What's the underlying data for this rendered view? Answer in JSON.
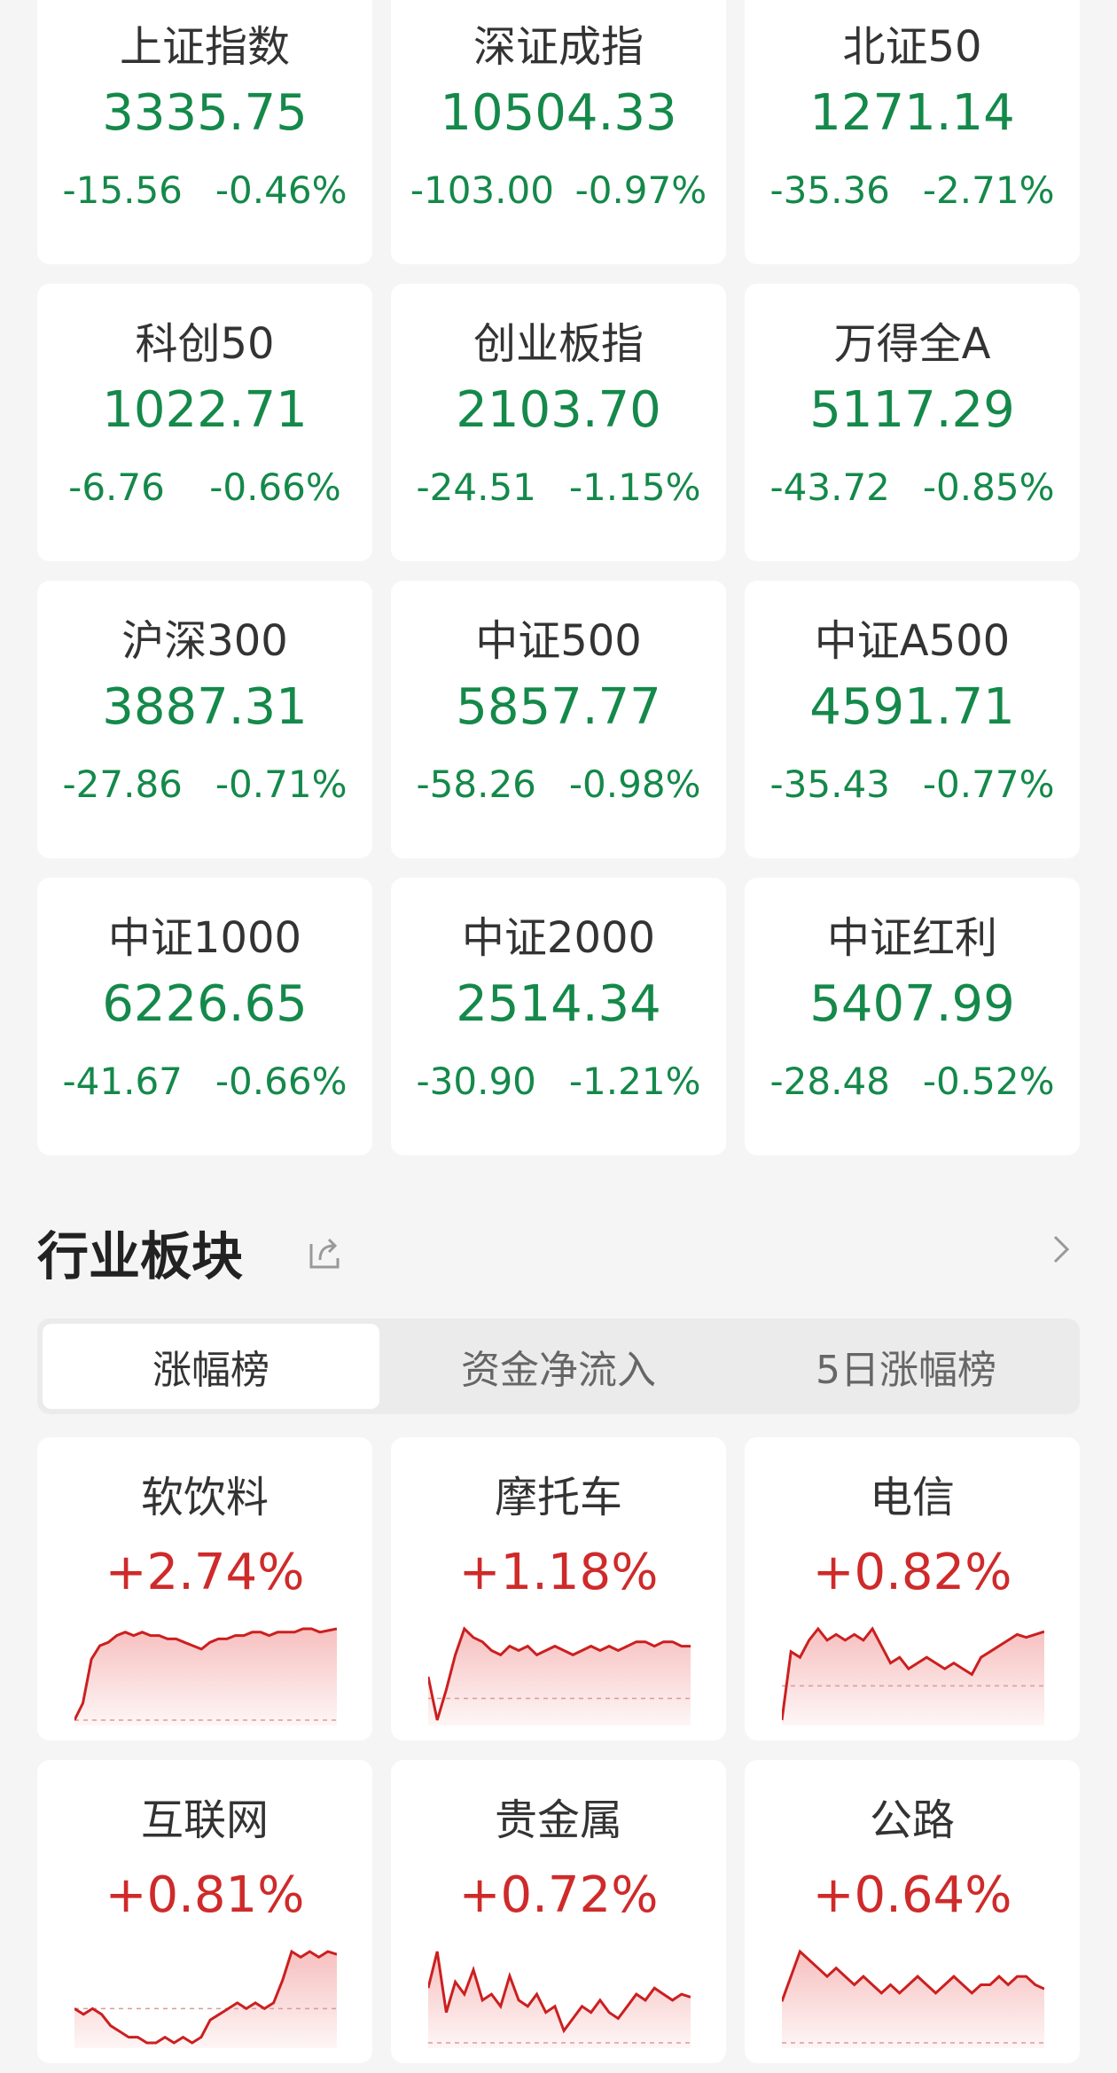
{
  "colors": {
    "down": "#14894a",
    "up": "#cf2a2a",
    "background": "#f5f5f5"
  },
  "indices": [
    {
      "name": "上证指数",
      "price": "3335.75",
      "change": "-15.56",
      "pct": "-0.46%"
    },
    {
      "name": "深证成指",
      "price": "10504.33",
      "change": "-103.00",
      "pct": "-0.97%"
    },
    {
      "name": "北证50",
      "price": "1271.14",
      "change": "-35.36",
      "pct": "-2.71%"
    },
    {
      "name": "科创50",
      "price": "1022.71",
      "change": "-6.76",
      "pct": "-0.66%"
    },
    {
      "name": "创业板指",
      "price": "2103.70",
      "change": "-24.51",
      "pct": "-1.15%"
    },
    {
      "name": "万得全A",
      "price": "5117.29",
      "change": "-43.72",
      "pct": "-0.85%"
    },
    {
      "name": "沪深300",
      "price": "3887.31",
      "change": "-27.86",
      "pct": "-0.71%"
    },
    {
      "name": "中证500",
      "price": "5857.77",
      "change": "-58.26",
      "pct": "-0.98%"
    },
    {
      "name": "中证A500",
      "price": "4591.71",
      "change": "-35.43",
      "pct": "-0.77%"
    },
    {
      "name": "中证1000",
      "price": "6226.65",
      "change": "-41.67",
      "pct": "-0.66%"
    },
    {
      "name": "中证2000",
      "price": "2514.34",
      "change": "-30.90",
      "pct": "-1.21%"
    },
    {
      "name": "中证红利",
      "price": "5407.99",
      "change": "-28.48",
      "pct": "-0.52%"
    }
  ],
  "section": {
    "title": "行业板块",
    "share_icon": "share-icon",
    "more_icon": "chevron-right-icon"
  },
  "tabs": [
    {
      "label": "涨幅榜",
      "active": true
    },
    {
      "label": "资金净流入",
      "active": false
    },
    {
      "label": "5日涨幅榜",
      "active": false
    }
  ],
  "sectors": [
    {
      "name": "软饮料",
      "pct": "+2.74%",
      "spark": [
        0,
        0.5,
        1.8,
        2.2,
        2.3,
        2.5,
        2.6,
        2.5,
        2.6,
        2.5,
        2.5,
        2.4,
        2.4,
        2.3,
        2.2,
        2.1,
        2.3,
        2.4,
        2.4,
        2.5,
        2.5,
        2.6,
        2.6,
        2.5,
        2.6,
        2.6,
        2.6,
        2.7,
        2.7,
        2.6,
        2.65,
        2.7
      ]
    },
    {
      "name": "摩托车",
      "pct": "+1.18%",
      "spark": [
        0.5,
        -0.5,
        0.2,
        1.0,
        1.6,
        1.4,
        1.3,
        1.1,
        1.0,
        1.2,
        1.1,
        1.2,
        1.0,
        1.1,
        1.2,
        1.1,
        1.0,
        1.1,
        1.2,
        1.1,
        1.2,
        1.1,
        1.2,
        1.3,
        1.3,
        1.2,
        1.3,
        1.3,
        1.2,
        1.2
      ]
    },
    {
      "name": "电信",
      "pct": "+0.82%",
      "spark": [
        -0.6,
        0.6,
        0.5,
        0.8,
        1.0,
        0.8,
        0.9,
        0.8,
        0.9,
        0.8,
        1.0,
        0.7,
        0.4,
        0.5,
        0.3,
        0.4,
        0.5,
        0.4,
        0.3,
        0.4,
        0.3,
        0.2,
        0.5,
        0.6,
        0.7,
        0.8,
        0.9,
        0.85,
        0.9,
        0.95
      ]
    },
    {
      "name": "互联网",
      "pct": "+0.81%",
      "spark": [
        0,
        -0.1,
        0,
        -0.1,
        -0.3,
        -0.4,
        -0.5,
        -0.5,
        -0.6,
        -0.6,
        -0.5,
        -0.6,
        -0.5,
        -0.6,
        -0.5,
        -0.2,
        -0.1,
        0,
        0.1,
        0,
        0.1,
        0,
        0.1,
        0.5,
        1.0,
        0.9,
        1.0,
        0.9,
        1.0,
        0.95
      ]
    },
    {
      "name": "贵金属",
      "pct": "+0.72%",
      "spark": [
        0.9,
        1.5,
        0.5,
        1.0,
        0.8,
        1.2,
        0.7,
        0.8,
        0.6,
        1.1,
        0.7,
        0.6,
        0.8,
        0.5,
        0.6,
        0.2,
        0.4,
        0.6,
        0.5,
        0.7,
        0.5,
        0.4,
        0.6,
        0.8,
        0.7,
        0.9,
        0.8,
        0.7,
        0.8,
        0.75
      ]
    },
    {
      "name": "公路",
      "pct": "+0.64%",
      "spark": [
        0.5,
        0.8,
        1.1,
        1.0,
        0.9,
        0.8,
        0.9,
        0.8,
        0.7,
        0.8,
        0.7,
        0.6,
        0.7,
        0.6,
        0.7,
        0.8,
        0.7,
        0.6,
        0.7,
        0.8,
        0.7,
        0.6,
        0.7,
        0.7,
        0.8,
        0.7,
        0.8,
        0.8,
        0.7,
        0.65
      ]
    }
  ]
}
